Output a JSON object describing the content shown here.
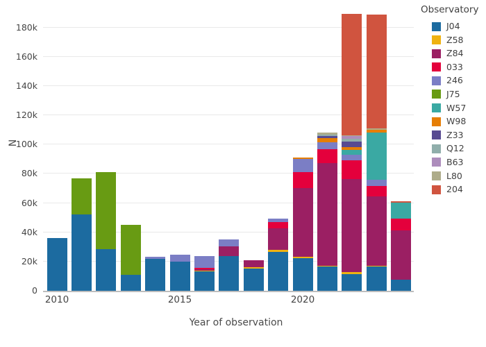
{
  "legend": {
    "title": "Observatory"
  },
  "axes": {
    "x_title": "Year of observation",
    "y_title": "N"
  },
  "chart_data": {
    "type": "bar",
    "stacked": true,
    "title": "",
    "xlabel": "Year of observation",
    "ylabel": "N",
    "legend_title": "Observatory",
    "legend_position": "right",
    "grid": true,
    "ylim": [
      0,
      193000
    ],
    "x": [
      2010,
      2011,
      2012,
      2013,
      2014,
      2015,
      2016,
      2017,
      2018,
      2019,
      2020,
      2021,
      2022,
      2023,
      2024
    ],
    "x_ticks": [
      {
        "label": "2010",
        "year": 2010
      },
      {
        "label": "2015",
        "year": 2015
      },
      {
        "label": "2020",
        "year": 2020
      }
    ],
    "y_ticks": [
      {
        "label": "0",
        "value": 0
      },
      {
        "label": "20k",
        "value": 20000
      },
      {
        "label": "40k",
        "value": 40000
      },
      {
        "label": "60k",
        "value": 60000
      },
      {
        "label": "80k",
        "value": 80000
      },
      {
        "label": "100k",
        "value": 100000
      },
      {
        "label": "120k",
        "value": 120000
      },
      {
        "label": "140k",
        "value": 140000
      },
      {
        "label": "160k",
        "value": 160000
      },
      {
        "label": "180k",
        "value": 180000
      }
    ],
    "series": [
      {
        "name": "J04",
        "color": "#1c6ba0",
        "values": [
          36000,
          52000,
          28500,
          10700,
          21600,
          19700,
          13200,
          23500,
          15400,
          26500,
          22100,
          16400,
          11600,
          16800,
          7500
        ]
      },
      {
        "name": "Z58",
        "color": "#efb211",
        "values": [
          0,
          0,
          0,
          0,
          0,
          0,
          800,
          0,
          800,
          1500,
          1000,
          500,
          1000,
          500,
          0
        ]
      },
      {
        "name": "Z84",
        "color": "#9b1f63",
        "values": [
          0,
          0,
          0,
          0,
          0,
          0,
          800,
          6900,
          4900,
          14700,
          46900,
          70600,
          64000,
          47300,
          34000
        ]
      },
      {
        "name": "033",
        "color": "#e4003c",
        "values": [
          0,
          0,
          0,
          0,
          0,
          0,
          800,
          0,
          0,
          4300,
          11200,
          9200,
          12400,
          7100,
          8000
        ]
      },
      {
        "name": "246",
        "color": "#7b7ec5",
        "values": [
          0,
          0,
          0,
          0,
          1700,
          4800,
          7900,
          4900,
          0,
          2200,
          8800,
          4700,
          4200,
          4400,
          0
        ]
      },
      {
        "name": "J75",
        "color": "#689b13",
        "values": [
          0,
          25000,
          52500,
          34300,
          0,
          0,
          0,
          0,
          0,
          0,
          0,
          0,
          0,
          0,
          0
        ]
      },
      {
        "name": "W57",
        "color": "#3aa9a3",
        "values": [
          0,
          0,
          0,
          0,
          0,
          0,
          0,
          0,
          0,
          0,
          0,
          0,
          2900,
          32300,
          10600
        ]
      },
      {
        "name": "W98",
        "color": "#e67e04",
        "values": [
          0,
          0,
          0,
          0,
          0,
          0,
          0,
          0,
          0,
          0,
          1000,
          3200,
          1900,
          1900,
          0
        ]
      },
      {
        "name": "Z33",
        "color": "#574a91",
        "values": [
          0,
          0,
          0,
          0,
          0,
          0,
          0,
          0,
          0,
          0,
          0,
          1400,
          3800,
          0,
          0
        ]
      },
      {
        "name": "Q12",
        "color": "#90aeab",
        "values": [
          0,
          0,
          0,
          0,
          0,
          0,
          0,
          0,
          0,
          0,
          0,
          900,
          1900,
          0,
          0
        ]
      },
      {
        "name": "B63",
        "color": "#ad8dbc",
        "values": [
          0,
          0,
          0,
          0,
          0,
          0,
          0,
          0,
          0,
          0,
          0,
          0,
          1900,
          0,
          0
        ]
      },
      {
        "name": "L80",
        "color": "#aeac8a",
        "values": [
          0,
          0,
          0,
          0,
          0,
          0,
          0,
          0,
          0,
          0,
          0,
          1500,
          500,
          900,
          0
        ]
      },
      {
        "name": "204",
        "color": "#d0543f",
        "values": [
          0,
          0,
          0,
          0,
          0,
          0,
          0,
          0,
          0,
          0,
          0,
          0,
          83000,
          77400,
          1200
        ]
      }
    ]
  }
}
